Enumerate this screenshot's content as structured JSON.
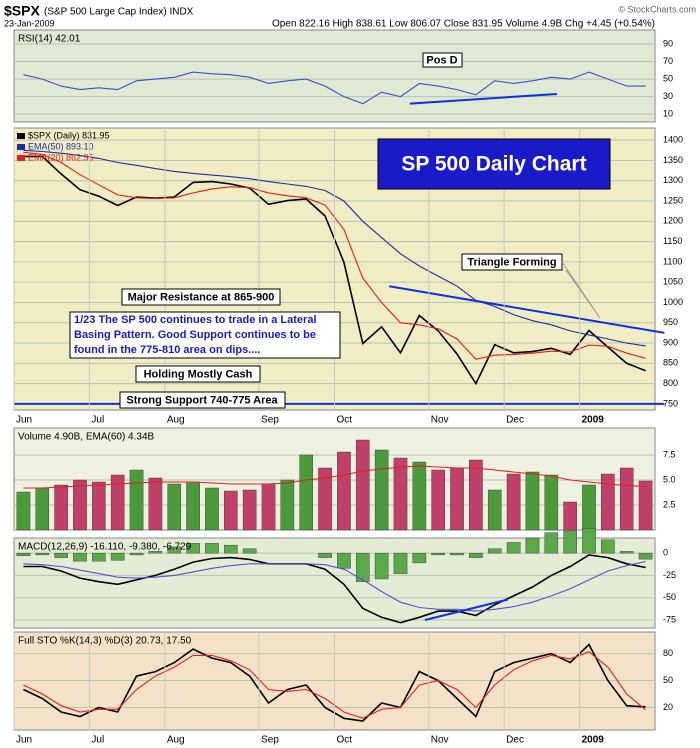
{
  "header": {
    "symbol": "$SPX",
    "name": "(S&P 500 Large Cap Index) INDX",
    "date": "23-Jan-2009",
    "quote": "Open 822.16 High 838.61 Low 806.07 Close 831.95 Volume 4.9B Chg +4.45 (+0.54%)",
    "copyright": "© StockCharts.com"
  },
  "annotations": {
    "chart_title": "SP 500 Daily Chart",
    "pos": "Pos D",
    "triangle": "Triangle Forming",
    "resistance": "Major Resistance at 865-900",
    "note": [
      "1/23  The SP 500 continues to trade in a Lateral",
      "Basing Pattern.  Good Support continues to be",
      "found in the 775-810 area on dips...."
    ],
    "cash": "Holding Mostly Cash",
    "support": "Strong Support 740-775 Area"
  },
  "chart_data": [
    {
      "type": "line",
      "title": "RSI(14) 42.01",
      "ylim": [
        1,
        106
      ],
      "yticks": [
        10,
        30,
        50,
        70,
        90
      ],
      "grid": true,
      "series": [
        {
          "color": "#3a4fd0",
          "values": [
            55,
            50,
            42,
            38,
            40,
            38,
            48,
            50,
            52,
            58,
            56,
            55,
            52,
            45,
            48,
            50,
            42,
            30,
            22,
            35,
            30,
            45,
            42,
            38,
            32,
            48,
            45,
            48,
            52,
            50,
            58,
            50,
            42,
            42.01
          ]
        }
      ],
      "trendlines": [
        {
          "color": "#1030e0",
          "x": [
            20.5,
            28.3
          ],
          "values": [
            22,
            33
          ]
        }
      ]
    },
    {
      "type": "line",
      "categories": [
        "Jun",
        null,
        null,
        null,
        "Jul",
        null,
        null,
        null,
        "Aug",
        null,
        null,
        null,
        null,
        "Sep",
        null,
        null,
        null,
        "Oct",
        null,
        null,
        null,
        null,
        "Nov",
        null,
        null,
        null,
        "Dec",
        null,
        null,
        null,
        "2009",
        null,
        null,
        null
      ],
      "ylim": [
        735,
        1430
      ],
      "yticks": [
        750,
        800,
        850,
        900,
        950,
        1000,
        1050,
        1100,
        1150,
        1200,
        1250,
        1300,
        1350,
        1400
      ],
      "grid": true,
      "series": [
        {
          "name": "$SPX (Daily) 831.95",
          "color": "#000000",
          "values": [
            1360,
            1360,
            1317,
            1278,
            1262,
            1239,
            1260,
            1257,
            1260,
            1296,
            1298,
            1292,
            1282,
            1242,
            1251,
            1255,
            1213,
            1099,
            899,
            940,
            876,
            968,
            930,
            873,
            800,
            896,
            876,
            879,
            887,
            872,
            931,
            890,
            850,
            831.95
          ]
        },
        {
          "name": "EMA(50) 893.10",
          "color": "#1c2fa0",
          "values": [
            1375,
            1372,
            1368,
            1362,
            1355,
            1345,
            1338,
            1330,
            1323,
            1318,
            1314,
            1310,
            1305,
            1298,
            1292,
            1286,
            1276,
            1250,
            1200,
            1160,
            1120,
            1090,
            1065,
            1040,
            1005,
            990,
            970,
            955,
            945,
            930,
            920,
            910,
            900,
            893.1
          ]
        },
        {
          "name": "EMA(20) 862.35",
          "color": "#e02020",
          "values": [
            1370,
            1365,
            1345,
            1315,
            1290,
            1265,
            1258,
            1256,
            1258,
            1270,
            1280,
            1285,
            1283,
            1270,
            1263,
            1258,
            1240,
            1180,
            1060,
            1000,
            950,
            945,
            935,
            910,
            860,
            870,
            872,
            875,
            880,
            878,
            895,
            892,
            875,
            862.35
          ]
        }
      ],
      "trendlines": [
        {
          "color": "#1030e0",
          "x": [
            19.4,
            34
          ],
          "values": [
            1040,
            925
          ]
        },
        {
          "color": "#1030e0",
          "x": [
            -0.5,
            34
          ],
          "values": [
            750,
            750
          ]
        }
      ]
    },
    {
      "type": "bar",
      "title": "Volume 4.90B, EMA(60) 4.34B",
      "ylim": [
        0,
        10.2
      ],
      "yticks": [
        {
          "value": 2.5,
          "label": "2.5"
        },
        {
          "value": 5,
          "label": "5.0"
        },
        {
          "value": 7.5,
          "label": "7.5"
        }
      ],
      "grid": true,
      "series": [
        {
          "type": "bar",
          "color": "#c0406a",
          "up_color": "#4c9a3c",
          "values": [
            3.8,
            4.2,
            4.5,
            5.0,
            4.8,
            5.5,
            6.0,
            5.2,
            4.6,
            4.8,
            4.2,
            3.9,
            4.0,
            4.6,
            5.0,
            7.5,
            6.2,
            7.8,
            9.0,
            8.0,
            7.2,
            6.8,
            6.0,
            6.2,
            7.0,
            4.0,
            5.6,
            5.8,
            5.5,
            2.8,
            4.5,
            5.6,
            6.2,
            4.9
          ]
        },
        {
          "type": "line",
          "color": "#e02020",
          "values": [
            4.2,
            4.2,
            4.3,
            4.4,
            4.5,
            4.6,
            4.7,
            4.8,
            4.8,
            4.8,
            4.7,
            4.6,
            4.6,
            4.6,
            4.7,
            5.0,
            5.2,
            5.5,
            5.9,
            6.1,
            6.3,
            6.4,
            6.3,
            6.2,
            6.2,
            6.0,
            5.8,
            5.6,
            5.4,
            5.0,
            4.8,
            4.6,
            4.45,
            4.34
          ]
        }
      ]
    },
    {
      "type": "line",
      "title": "MACD(12,26,9) -16.110, -9.380, -6.729",
      "ylim": [
        -84,
        17
      ],
      "yticks": [
        0,
        -25,
        -50,
        -75
      ],
      "grid": true,
      "series": [
        {
          "type": "bar",
          "color": "#5aa84a",
          "values": [
            -3,
            -2,
            -5,
            -9,
            -9,
            -8,
            -2,
            2,
            7,
            11,
            11,
            9,
            5,
            0,
            0,
            0,
            -5,
            -17,
            -32,
            -29,
            -23,
            -11,
            -2,
            -2,
            -5,
            5,
            12,
            17,
            23,
            25,
            28,
            15,
            2,
            -6.729
          ]
        },
        {
          "color": "#000000",
          "values": [
            -15,
            -15,
            -20,
            -28,
            -32,
            -35,
            -30,
            -25,
            -18,
            -10,
            -6,
            -5,
            -7,
            -12,
            -12,
            -12,
            -18,
            -35,
            -62,
            -72,
            -78,
            -72,
            -65,
            -65,
            -70,
            -58,
            -48,
            -38,
            -25,
            -15,
            -2,
            -5,
            -12,
            -16.11
          ]
        },
        {
          "color": "#5a4fd0",
          "values": [
            -12,
            -13,
            -15,
            -19,
            -23,
            -27,
            -28,
            -27,
            -25,
            -21,
            -17,
            -14,
            -12,
            -12,
            -12,
            -12,
            -13,
            -18,
            -30,
            -43,
            -55,
            -61,
            -63,
            -63,
            -65,
            -63,
            -60,
            -55,
            -48,
            -40,
            -30,
            -20,
            -14,
            -9.38
          ]
        }
      ],
      "trendlines": [
        {
          "color": "#1030e0",
          "x": [
            21.3,
            25.7
          ],
          "values": [
            -75,
            -52
          ]
        }
      ]
    },
    {
      "type": "line",
      "title": "Full STO %K(14,3) %D(3) 20.73, 17.50",
      "categories": [
        "Jun",
        null,
        null,
        null,
        "Jul",
        null,
        null,
        null,
        "Aug",
        null,
        null,
        null,
        null,
        "Sep",
        null,
        null,
        null,
        "Oct",
        null,
        null,
        null,
        null,
        "Nov",
        null,
        null,
        null,
        "Dec",
        null,
        null,
        null,
        "2009",
        null,
        null,
        null
      ],
      "ylim": [
        -5,
        104
      ],
      "yticks": [
        20,
        50,
        80
      ],
      "grid": true,
      "series": [
        {
          "color": "#000000",
          "values": [
            40,
            30,
            15,
            10,
            20,
            15,
            55,
            60,
            70,
            85,
            75,
            70,
            55,
            25,
            40,
            45,
            20,
            8,
            5,
            25,
            20,
            60,
            50,
            30,
            10,
            60,
            70,
            75,
            80,
            70,
            90,
            50,
            22,
            20.73
          ]
        },
        {
          "color": "#e02020",
          "values": [
            45,
            35,
            22,
            15,
            18,
            18,
            40,
            55,
            65,
            78,
            78,
            72,
            62,
            40,
            38,
            40,
            30,
            15,
            8,
            18,
            20,
            45,
            50,
            40,
            20,
            45,
            62,
            72,
            78,
            74,
            82,
            65,
            35,
            17.5
          ]
        }
      ]
    }
  ]
}
